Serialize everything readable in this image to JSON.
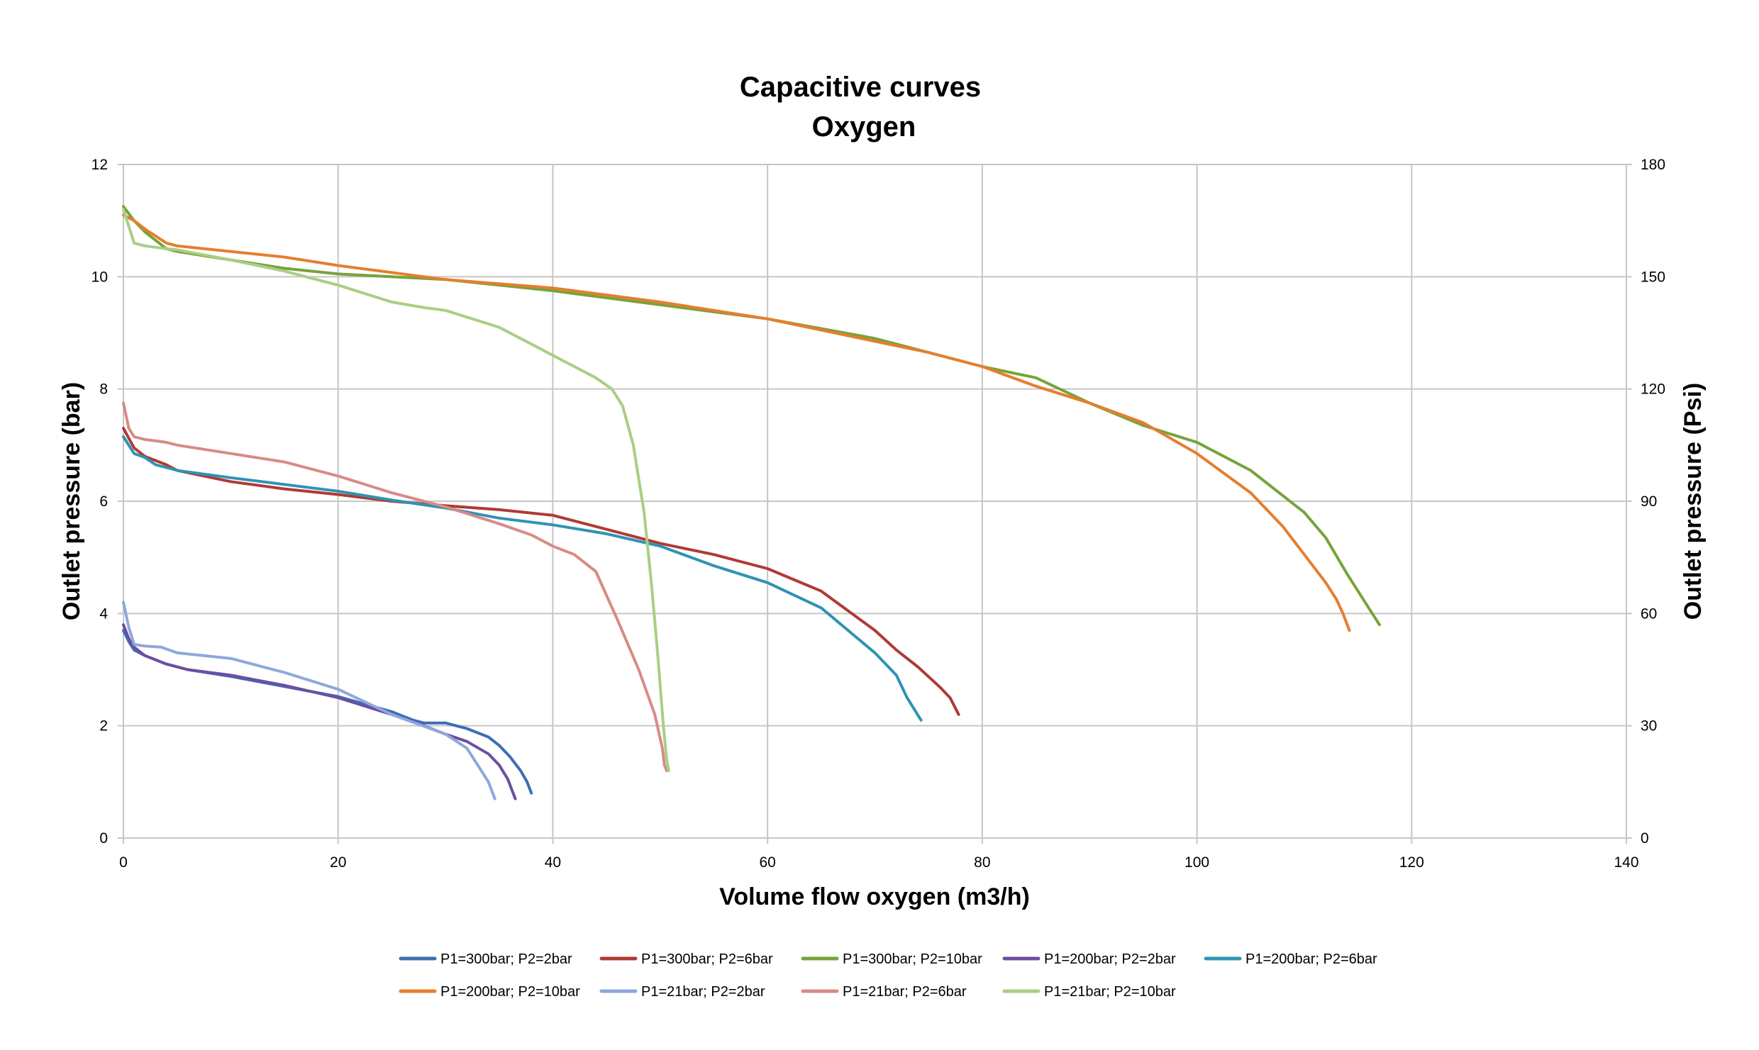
{
  "chart_data": {
    "type": "line",
    "title": [
      "Capacitive curves",
      "Oxygen"
    ],
    "xlabel": "Volume flow oxygen (m3/h)",
    "ylabel": "Outlet pressure (bar)",
    "y2label": "Outlet pressure (Psi)",
    "xlim": [
      0,
      140
    ],
    "ylim": [
      0,
      12
    ],
    "y2lim": [
      0,
      180
    ],
    "xticks": [
      "0",
      "20",
      "40",
      "60",
      "80",
      "100",
      "120",
      "140"
    ],
    "yticks": [
      "0",
      "2",
      "4",
      "6",
      "8",
      "10",
      "12"
    ],
    "y2ticks": [
      "0",
      "30",
      "60",
      "90",
      "120",
      "150",
      "180"
    ],
    "grid": true,
    "legend_position": "bottom",
    "series": [
      {
        "name": "P1=300bar; P2=2bar",
        "color": "#3c6eb4",
        "x": [
          0,
          0.5,
          1,
          2,
          4,
          6,
          10,
          15,
          20,
          25,
          27,
          28,
          29,
          30,
          32,
          34,
          35,
          36,
          37,
          37.6,
          38
        ],
        "y": [
          3.7,
          3.5,
          3.35,
          3.25,
          3.1,
          3.0,
          2.88,
          2.7,
          2.52,
          2.25,
          2.1,
          2.05,
          2.05,
          2.05,
          1.95,
          1.8,
          1.65,
          1.45,
          1.2,
          1.0,
          0.8
        ]
      },
      {
        "name": "P1=300bar; P2=6bar",
        "color": "#b03a35",
        "x": [
          0,
          1,
          2,
          4,
          5,
          10,
          15,
          20,
          25,
          30,
          35,
          40,
          45,
          50,
          55,
          60,
          65,
          70,
          72,
          74,
          76,
          77,
          77.8
        ],
        "y": [
          7.3,
          6.95,
          6.8,
          6.65,
          6.55,
          6.35,
          6.22,
          6.12,
          6.0,
          5.92,
          5.85,
          5.75,
          5.5,
          5.25,
          5.05,
          4.8,
          4.4,
          3.7,
          3.35,
          3.05,
          2.7,
          2.5,
          2.2
        ]
      },
      {
        "name": "P1=300bar; P2=10bar",
        "color": "#77a33a",
        "x": [
          0,
          1,
          2,
          4,
          5,
          10,
          15,
          20,
          30,
          40,
          50,
          60,
          70,
          75,
          80,
          85,
          90,
          95,
          100,
          105,
          110,
          112,
          114,
          116,
          117
        ],
        "y": [
          11.25,
          11.0,
          10.8,
          10.5,
          10.45,
          10.3,
          10.15,
          10.05,
          9.95,
          9.75,
          9.5,
          9.25,
          8.9,
          8.65,
          8.4,
          8.2,
          7.75,
          7.35,
          7.05,
          6.55,
          5.8,
          5.35,
          4.7,
          4.1,
          3.8
        ]
      },
      {
        "name": "P1=200bar; P2=2bar",
        "color": "#6b4fa0",
        "x": [
          0,
          0.5,
          1,
          2,
          4,
          6,
          10,
          15,
          20,
          25,
          28,
          30,
          32,
          34,
          35,
          35.8,
          36.5
        ],
        "y": [
          3.8,
          3.55,
          3.4,
          3.25,
          3.1,
          3.0,
          2.9,
          2.72,
          2.5,
          2.2,
          2.0,
          1.85,
          1.72,
          1.5,
          1.3,
          1.05,
          0.7
        ]
      },
      {
        "name": "P1=200bar; P2=6bar",
        "color": "#2f93b4",
        "x": [
          0,
          1,
          2,
          3,
          5,
          10,
          15,
          20,
          25,
          30,
          35,
          40,
          45,
          50,
          55,
          60,
          65,
          70,
          72,
          73,
          74.3
        ],
        "y": [
          7.15,
          6.85,
          6.78,
          6.65,
          6.55,
          6.42,
          6.3,
          6.18,
          6.02,
          5.88,
          5.7,
          5.58,
          5.42,
          5.2,
          4.85,
          4.55,
          4.1,
          3.3,
          2.9,
          2.5,
          2.1
        ]
      },
      {
        "name": "P1=200bar; P2=10bar",
        "color": "#e67e2e",
        "x": [
          0,
          1,
          2,
          4,
          5,
          10,
          15,
          20,
          30,
          40,
          50,
          60,
          70,
          75,
          80,
          85,
          90,
          95,
          100,
          105,
          108,
          110,
          112,
          113,
          113.6,
          114.2
        ],
        "y": [
          11.1,
          11.0,
          10.85,
          10.6,
          10.55,
          10.45,
          10.35,
          10.2,
          9.95,
          9.8,
          9.55,
          9.25,
          8.85,
          8.65,
          8.4,
          8.05,
          7.75,
          7.4,
          6.85,
          6.15,
          5.55,
          5.05,
          4.55,
          4.25,
          4.0,
          3.7
        ]
      },
      {
        "name": "P1=21bar; P2=2bar",
        "color": "#8ea8dc",
        "x": [
          0,
          0.5,
          1,
          2,
          3.5,
          5,
          10,
          15,
          20,
          25,
          30,
          32,
          33,
          34,
          34.6
        ],
        "y": [
          4.2,
          3.75,
          3.45,
          3.42,
          3.4,
          3.3,
          3.2,
          2.95,
          2.65,
          2.2,
          1.85,
          1.6,
          1.3,
          1.0,
          0.7
        ]
      },
      {
        "name": "P1=21bar; P2=6bar",
        "color": "#d88b85",
        "x": [
          0,
          0.5,
          1,
          2,
          4,
          5,
          10,
          15,
          20,
          25,
          30,
          35,
          38,
          40,
          42,
          44,
          46,
          48,
          49.5,
          50.2,
          50.4,
          50.6
        ],
        "y": [
          7.75,
          7.3,
          7.15,
          7.1,
          7.05,
          7.0,
          6.85,
          6.7,
          6.45,
          6.15,
          5.9,
          5.6,
          5.4,
          5.2,
          5.05,
          4.75,
          3.9,
          3.0,
          2.2,
          1.6,
          1.3,
          1.2
        ]
      },
      {
        "name": "P1=21bar; P2=10bar",
        "color": "#a9cf83",
        "x": [
          0,
          0.5,
          1,
          2,
          4,
          5,
          10,
          15,
          20,
          25,
          28,
          30,
          35,
          38,
          40,
          42,
          44,
          45.5,
          46.5,
          47.5,
          48.5,
          49.2,
          49.8,
          50.3,
          50.6,
          50.8
        ],
        "y": [
          11.2,
          10.9,
          10.6,
          10.55,
          10.5,
          10.48,
          10.3,
          10.1,
          9.85,
          9.55,
          9.45,
          9.4,
          9.1,
          8.8,
          8.6,
          8.4,
          8.2,
          8.0,
          7.7,
          7.0,
          5.8,
          4.5,
          3.2,
          2.0,
          1.4,
          1.2
        ]
      }
    ]
  }
}
